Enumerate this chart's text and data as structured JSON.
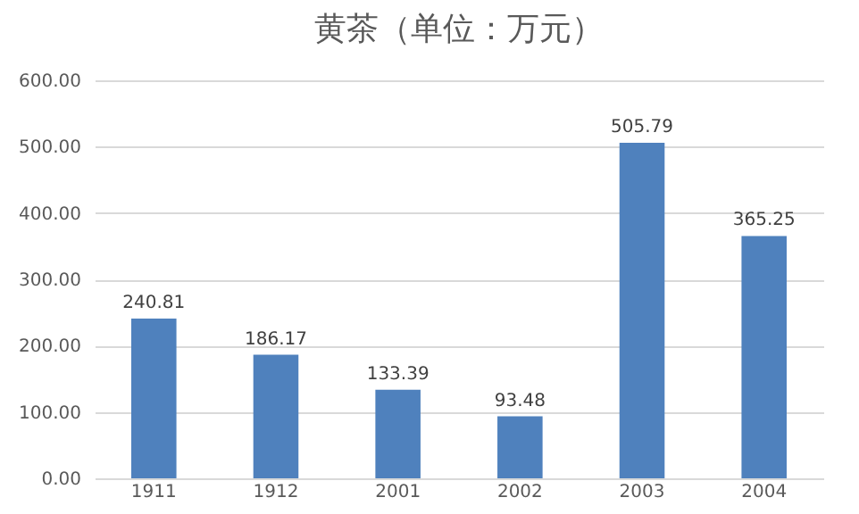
{
  "chart_data": {
    "type": "bar",
    "title": "黄茶（单位：万元）",
    "categories": [
      "1911",
      "1912",
      "2001",
      "2002",
      "2003",
      "2004"
    ],
    "values": [
      240.81,
      186.17,
      133.39,
      93.48,
      505.79,
      365.25
    ],
    "color": "#4f81bd",
    "ylim": [
      0,
      600
    ],
    "yticks": [
      {
        "value": 0,
        "label": "0.00"
      },
      {
        "value": 100,
        "label": "100.00"
      },
      {
        "value": 200,
        "label": "200.00"
      },
      {
        "value": 300,
        "label": "300.00"
      },
      {
        "value": 400,
        "label": "400.00"
      },
      {
        "value": 500,
        "label": "500.00"
      },
      {
        "value": 600,
        "label": "600.00"
      }
    ],
    "grid": "y",
    "data_labels": true
  }
}
